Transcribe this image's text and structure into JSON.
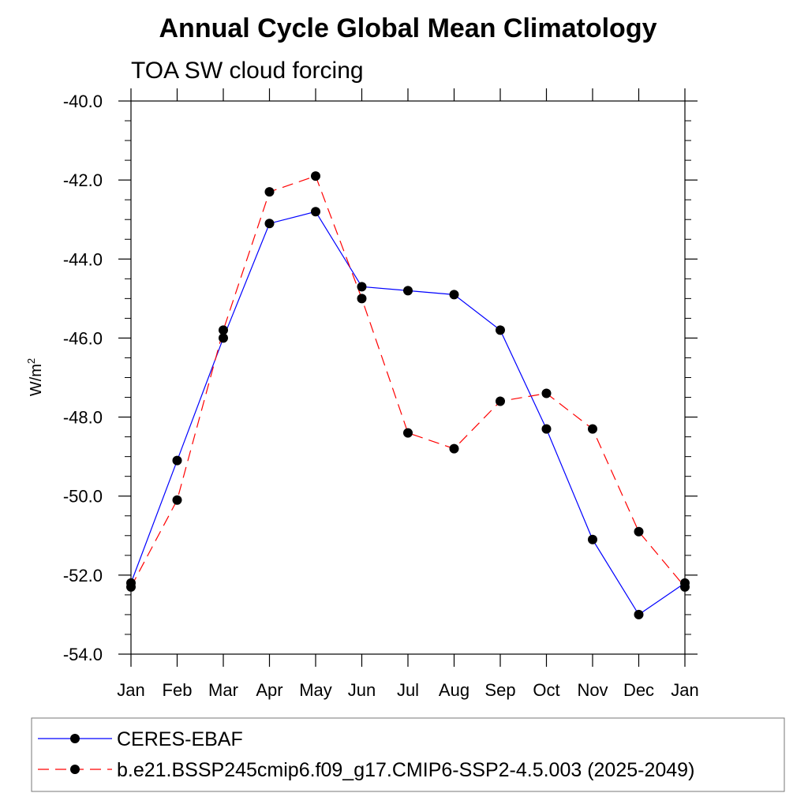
{
  "chart_data": {
    "type": "line",
    "title": "Annual Cycle Global Mean Climatology",
    "subtitle": "TOA SW cloud forcing",
    "ylabel": "W/m",
    "ylabel_superscript": "2",
    "categories": [
      "Jan",
      "Feb",
      "Mar",
      "Apr",
      "May",
      "Jun",
      "Jul",
      "Aug",
      "Sep",
      "Oct",
      "Nov",
      "Dec",
      "Jan"
    ],
    "ylim": [
      -54.0,
      -40.0
    ],
    "y_ticks": [
      "-54.0",
      "-52.0",
      "-50.0",
      "-48.0",
      "-46.0",
      "-44.0",
      "-42.0",
      "-40.0"
    ],
    "y_tick_values": [
      -54,
      -52,
      -50,
      -48,
      -46,
      -44,
      -42,
      -40
    ],
    "grid": false,
    "legend_position": "bottom",
    "series": [
      {
        "name": "CERES-EBAF",
        "color": "#0000ff",
        "dash": "solid",
        "values": [
          -52.2,
          -49.1,
          -46.0,
          -43.1,
          -42.8,
          -44.7,
          -44.8,
          -44.9,
          -45.8,
          -48.3,
          -51.1,
          -53.0,
          -52.2
        ]
      },
      {
        "name": "b.e21.BSSP245cmip6.f09_g17.CMIP6-SSP2-4.5.003 (2025-2049)",
        "color": "#ff0000",
        "dash": "dashed",
        "values": [
          -52.3,
          -50.1,
          -45.8,
          -42.3,
          -41.9,
          -45.0,
          -48.4,
          -48.8,
          -47.6,
          -47.4,
          -48.3,
          -50.9,
          -52.3
        ]
      }
    ]
  }
}
